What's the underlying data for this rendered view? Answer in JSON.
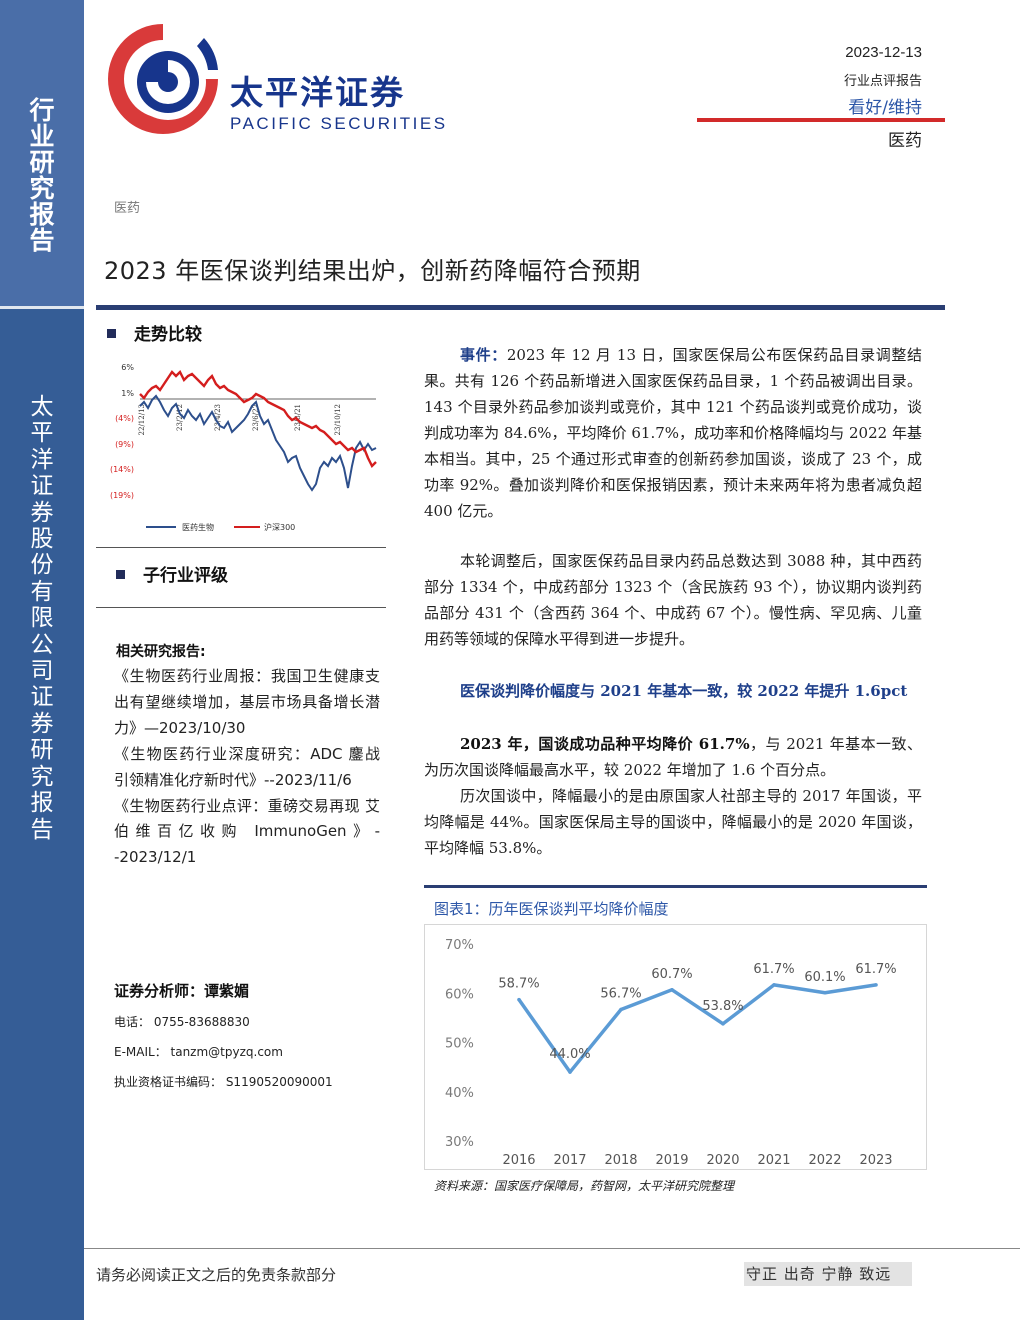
{
  "sidebar": {
    "report_type_chars": [
      "行",
      "业",
      "研",
      "究",
      "报",
      "告"
    ],
    "company_chars": [
      "太",
      "平",
      "洋",
      "证",
      "券",
      "股",
      "份",
      "有",
      "限",
      "公",
      "司",
      "证",
      "券",
      "研",
      "究",
      "报",
      "告"
    ]
  },
  "logo": {
    "cn": "太平洋证券",
    "en": "PACIFIC SECURITIES",
    "colors": {
      "ring_red": "#d93a3a",
      "ring_blue": "#17358c"
    }
  },
  "header": {
    "date": "2023-12-13",
    "report_type": "行业点评报告",
    "rating": "看好/维持",
    "sector": "医药"
  },
  "sector_tag": "医药",
  "title": "2023 年医保谈判结果出炉，创新药降幅符合预期",
  "left": {
    "trend_heading": "走势比较",
    "trend_chart": {
      "y_labels": [
        "6%",
        "1%",
        "(4%)",
        "(9%)",
        "(14%)",
        "(19%)"
      ],
      "x_labels": [
        "22/12/13",
        "23/2/12",
        "23/4/23",
        "23/6/22",
        "23/8/21",
        "23/10/12"
      ],
      "legend": [
        "医药生物",
        "沪深300"
      ],
      "colors": {
        "pharma": "#2d4f8c",
        "csi300": "#d41e1e"
      }
    },
    "sub_heading": "子行业评级",
    "related_heading": "相关研究报告:",
    "related_reports": [
      "《生物医药行业周报：我国卫生健康支出有望继续增加，基层市场具备增长潜力》—2023/10/30",
      "《生物医药行业深度研究：ADC 鏖战 引领精准化疗新时代》--2023/11/6",
      "《生物医药行业点评：重磅交易再现 艾伯维百亿收购 ImmunoGen》--2023/12/1"
    ],
    "analyst": "证券分析师：谭紫媚",
    "phone": "电话：  0755-83688830",
    "email": "E-MAIL：  tanzm@tpyzq.com",
    "license": "执业资格证书编码：  S1190520090001"
  },
  "main": {
    "event_label": "事件：",
    "event_text": "2023 年 12 月 13 日，国家医保局公布医保药品目录调整结果。共有 126 个药品新增进入国家医保药品目录，1 个药品被调出目录。143 个目录外药品参加谈判或竞价，其中 121 个药品谈判或竞价成功，谈判成功率为 84.6%，平均降价 61.7%，成功率和价格降幅均与 2022 年基本相当。其中，25 个通过形式审查的创新药参加国谈，谈成了 23 个，成功率 92%。叠加谈判降价和医保报销因素，预计未来两年将为患者减负超 400 亿元。",
    "adjust_text": "本轮调整后，国家医保药品目录内药品总数达到 3088 种，其中西药部分 1334 个，中成药部分 1323 个（含民族药 93 个），协议期内谈判药品部分 431 个（含西药 364 个、中成药 67 个）。慢性病、罕见病、儿童用药等领域的保障水平得到进一步提升。",
    "subtitle": "医保谈判降价幅度与 2021 年基本一致，较 2022 年提升 1.6pct",
    "p2023_bold": "2023 年，国谈成功品种平均降价 61.7%",
    "p2023_rest": "，与 2021 年基本一致、为历次国谈降幅最高水平，较 2022 年增加了 1.6 个百分点。",
    "history_text": "历次国谈中，降幅最小的是由原国家人社部主导的 2017 年国谈，平均降幅是 44%。国家医保局主导的国谈中，降幅最小的是 2020 年国谈，平均降幅 53.8%。",
    "figure_title": "图表1：历年医保谈判平均降价幅度",
    "figure_source": "资料来源：国家医疗保障局，药智网，太平洋研究院整理"
  },
  "chart_data": {
    "type": "line",
    "title": "图表1：历年医保谈判平均降价幅度",
    "categories": [
      "2016",
      "2017",
      "2018",
      "2019",
      "2020",
      "2021",
      "2022",
      "2023"
    ],
    "values": [
      58.7,
      44.0,
      56.7,
      60.7,
      53.8,
      61.7,
      60.1,
      61.7
    ],
    "data_labels": [
      "58.7%",
      "44.0%",
      "56.7%",
      "60.7%",
      "53.8%",
      "61.7%",
      "60.1%",
      "61.7%"
    ],
    "y_ticks": [
      "30%",
      "40%",
      "50%",
      "60%",
      "70%"
    ],
    "ylim": [
      30,
      70
    ],
    "xlabel": "",
    "ylabel": "",
    "grid": false,
    "line_color": "#5b9bd5"
  },
  "footer": {
    "disclaimer": "请务必阅读正文之后的免责条款部分",
    "motto": "守正 出奇 宁静 致远"
  }
}
